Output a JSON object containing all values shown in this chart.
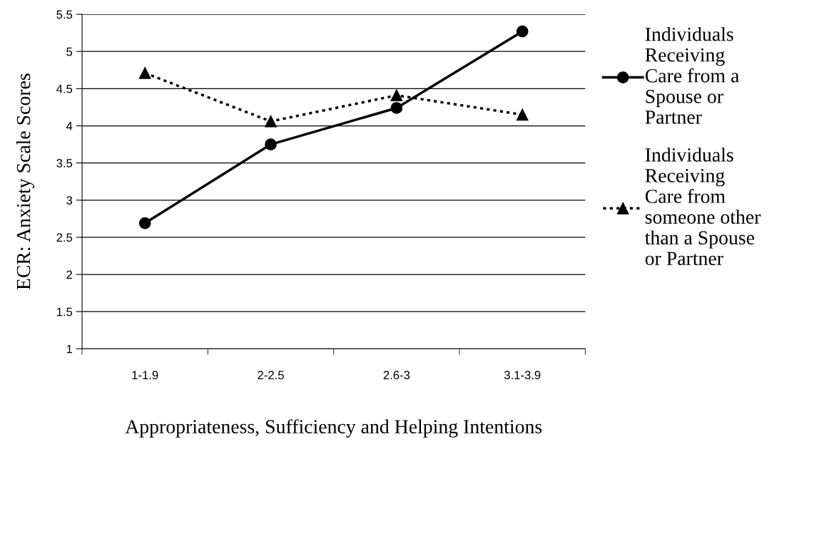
{
  "chart_data": {
    "type": "line",
    "xlabel": "Appropriateness, Sufficiency and Helping Intentions",
    "ylabel": "ECR: Anxiety Scale Scores",
    "categories": [
      "1-1.9",
      "2-2.5",
      "2.6-3",
      "3.1-3.9"
    ],
    "series": [
      {
        "name": "Individuals\nReceiving\nCare from a\nSpouse or\nPartner",
        "color": "#000000",
        "values": [
          2.69,
          3.75,
          4.24,
          5.27
        ],
        "marker": "circle",
        "line_style": "solid"
      },
      {
        "name": "Individuals\nReceiving\nCare from\nsomeone other\nthan a Spouse\nor Partner",
        "color": "#000000",
        "values": [
          4.71,
          4.06,
          4.41,
          4.15
        ],
        "marker": "triangle",
        "line_style": "dotted"
      }
    ],
    "ylim": [
      1,
      5.5
    ],
    "yticks": [
      1,
      1.5,
      2,
      2.5,
      3,
      3.5,
      4,
      4.5,
      5,
      5.5
    ],
    "grid": "y",
    "legend": "right"
  }
}
